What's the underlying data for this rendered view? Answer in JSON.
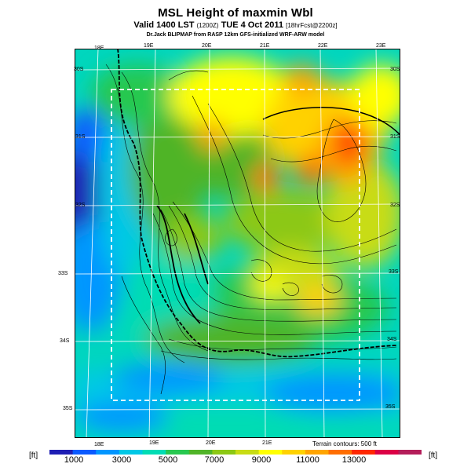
{
  "title": "MSL Height of maxmin Wbl",
  "valid": {
    "prefix": "Valid 1400 LST",
    "utc": "(1200Z)",
    "date": "TUE 4 Oct 2011",
    "run": "[18hrFcst@2200z]"
  },
  "credit": "Dr.Jack BLIPMAP from RASP 12km GFS-initialized WRF-ARW model",
  "map": {
    "lon_labels_top": [
      "18E",
      "19E",
      "20E",
      "21E",
      "22E",
      "23E"
    ],
    "lon_labels_bottom": [
      "18E",
      "19E",
      "20E",
      "21E"
    ],
    "lat_labels_left": [
      "30S",
      "31S",
      "32S",
      "33S",
      "34S",
      "35S"
    ],
    "lat_labels_right": [
      "30S",
      "31S",
      "32S",
      "33S",
      "34S",
      "35S"
    ],
    "terrain_note": "Terrain contours: 500 ft"
  },
  "legend": {
    "unit_left": "[ft]",
    "unit_right": "[ft]",
    "labels": [
      "1000",
      "3000",
      "5000",
      "7000",
      "9000",
      "11000",
      "13000"
    ],
    "colors": [
      "#1e1eb4",
      "#0a5aff",
      "#0096ff",
      "#00c8e6",
      "#00dcb4",
      "#28c850",
      "#50b428",
      "#8cc814",
      "#c8dc14",
      "#ffff00",
      "#ffd200",
      "#ffa500",
      "#ff6e00",
      "#ff2800",
      "#dc0046",
      "#b41e5a"
    ]
  }
}
